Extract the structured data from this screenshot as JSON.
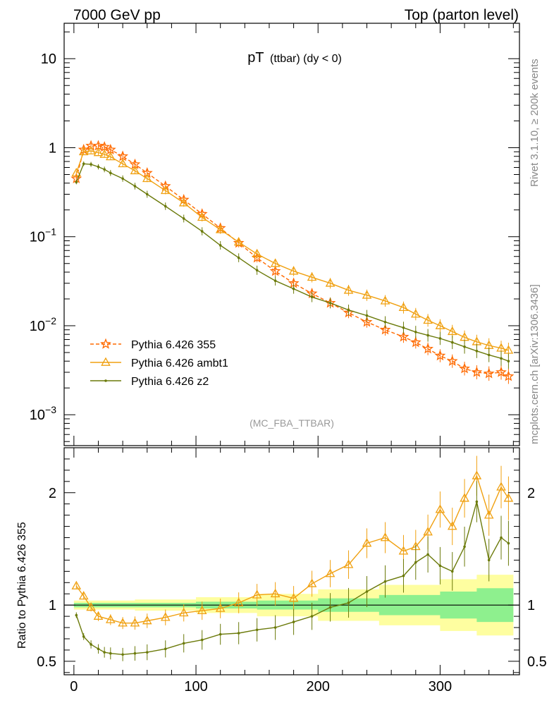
{
  "header": {
    "left": "7000 GeV pp",
    "right": "Top (parton level)"
  },
  "side_text": {
    "rivet": "Rivet 3.1.10, ≥ 200k events",
    "mcplots": "mcplots.cern.ch [arXiv:1306.3436]"
  },
  "chart_data": [
    {
      "type": "line",
      "panel": "main",
      "title_main": "pT",
      "title_sub": "(ttbar) (dy < 0)",
      "analysis_label": "(MC_FBA_TTBAR)",
      "yscale": "log",
      "ylim": [
        0.00045,
        25
      ],
      "xlim": [
        -8,
        365
      ],
      "y_tick_labels": [
        {
          "value": 10,
          "base": "10",
          "exp": ""
        },
        {
          "value": 1,
          "base": "1",
          "exp": ""
        },
        {
          "value": 0.1,
          "base": "10",
          "exp": "−1"
        },
        {
          "value": 0.01,
          "base": "10",
          "exp": "−2"
        },
        {
          "value": 0.001,
          "base": "10",
          "exp": "−3"
        }
      ],
      "legend": [
        {
          "name": "Pythia 6.426 355",
          "color": "#ff6a00",
          "marker": "star",
          "dashed": true
        },
        {
          "name": "Pythia 6.426 ambt1",
          "color": "#f0a010",
          "marker": "triangle",
          "dashed": false
        },
        {
          "name": "Pythia 6.426 z2",
          "color": "#6b7a0a",
          "marker": "dot",
          "dashed": false
        }
      ],
      "series": [
        {
          "name": "Pythia 6.426 355",
          "x": [
            2,
            8,
            14,
            20,
            25,
            30,
            40,
            50,
            60,
            75,
            90,
            105,
            120,
            135,
            150,
            165,
            180,
            195,
            210,
            225,
            240,
            255,
            270,
            280,
            290,
            300,
            310,
            320,
            330,
            340,
            350,
            356
          ],
          "y": [
            0.45,
            0.95,
            1.05,
            1.05,
            1.02,
            0.95,
            0.8,
            0.65,
            0.52,
            0.37,
            0.26,
            0.18,
            0.125,
            0.085,
            0.058,
            0.041,
            0.03,
            0.023,
            0.018,
            0.014,
            0.011,
            0.009,
            0.0075,
            0.0065,
            0.0055,
            0.0046,
            0.004,
            0.0033,
            0.003,
            0.0029,
            0.003,
            0.0027
          ]
        },
        {
          "name": "Pythia 6.426 ambt1",
          "x": [
            2,
            8,
            14,
            20,
            25,
            30,
            40,
            50,
            60,
            75,
            90,
            105,
            120,
            135,
            150,
            165,
            180,
            195,
            210,
            225,
            240,
            255,
            270,
            280,
            290,
            300,
            310,
            320,
            330,
            340,
            350,
            356
          ],
          "y": [
            0.52,
            0.9,
            0.92,
            0.88,
            0.84,
            0.79,
            0.66,
            0.55,
            0.45,
            0.33,
            0.24,
            0.165,
            0.12,
            0.087,
            0.064,
            0.05,
            0.041,
            0.035,
            0.03,
            0.025,
            0.022,
            0.019,
            0.016,
            0.0135,
            0.0115,
            0.01,
            0.0086,
            0.0074,
            0.0066,
            0.006,
            0.0056,
            0.0053
          ]
        },
        {
          "name": "Pythia 6.426 z2",
          "x": [
            2,
            8,
            14,
            20,
            25,
            30,
            40,
            50,
            60,
            75,
            90,
            105,
            120,
            135,
            150,
            165,
            180,
            195,
            210,
            225,
            240,
            255,
            270,
            280,
            290,
            300,
            310,
            320,
            330,
            340,
            350,
            356
          ],
          "y": [
            0.41,
            0.66,
            0.65,
            0.61,
            0.57,
            0.52,
            0.45,
            0.37,
            0.3,
            0.22,
            0.16,
            0.115,
            0.08,
            0.058,
            0.042,
            0.032,
            0.026,
            0.021,
            0.018,
            0.015,
            0.013,
            0.011,
            0.0095,
            0.0085,
            0.0078,
            0.0072,
            0.0065,
            0.0058,
            0.0052,
            0.0047,
            0.0043,
            0.004
          ]
        }
      ]
    },
    {
      "type": "line",
      "panel": "ratio",
      "ylabel": "Ratio to Pythia 6.426 355",
      "ylim": [
        0.38,
        2.4
      ],
      "xlim": [
        -8,
        365
      ],
      "x_ticks": [
        0,
        100,
        200,
        300
      ],
      "y_ticks": [
        0.5,
        1,
        2
      ],
      "y_tick_labels": [
        "0.5",
        "1",
        "2"
      ],
      "x_tick_labels": [
        "0",
        "100",
        "200",
        "300"
      ],
      "bands": {
        "x": [
          0,
          50,
          100,
          150,
          200,
          250,
          300,
          330,
          360
        ],
        "green_half_width": [
          0.02,
          0.02,
          0.03,
          0.04,
          0.06,
          0.09,
          0.12,
          0.15,
          0.17
        ],
        "yellow_half_width": [
          0.04,
          0.05,
          0.07,
          0.1,
          0.14,
          0.18,
          0.23,
          0.27,
          0.3
        ]
      },
      "series": [
        {
          "name": "Pythia 6.426 ambt1",
          "x": [
            2,
            8,
            14,
            20,
            30,
            40,
            50,
            60,
            75,
            90,
            105,
            120,
            135,
            150,
            165,
            180,
            195,
            210,
            225,
            240,
            255,
            270,
            280,
            290,
            300,
            310,
            320,
            330,
            340,
            350,
            356
          ],
          "y": [
            1.17,
            1.08,
            0.98,
            0.9,
            0.87,
            0.84,
            0.84,
            0.86,
            0.89,
            0.93,
            0.95,
            0.97,
            1.02,
            1.09,
            1.1,
            1.06,
            1.19,
            1.28,
            1.36,
            1.55,
            1.6,
            1.48,
            1.52,
            1.65,
            1.85,
            1.7,
            1.95,
            2.15,
            1.8,
            2.05,
            1.95
          ]
        },
        {
          "name": "Pythia 6.426 z2",
          "x": [
            2,
            8,
            14,
            20,
            25,
            30,
            40,
            50,
            60,
            75,
            90,
            105,
            120,
            135,
            150,
            165,
            180,
            195,
            210,
            225,
            240,
            255,
            270,
            280,
            290,
            300,
            310,
            320,
            330,
            340,
            350,
            356
          ],
          "y": [
            0.91,
            0.72,
            0.65,
            0.61,
            0.58,
            0.57,
            0.56,
            0.57,
            0.58,
            0.61,
            0.66,
            0.69,
            0.74,
            0.75,
            0.78,
            0.8,
            0.85,
            0.9,
            0.98,
            1.02,
            1.12,
            1.21,
            1.26,
            1.38,
            1.45,
            1.35,
            1.3,
            1.52,
            1.92,
            1.4,
            1.6,
            1.55
          ]
        }
      ],
      "reference_line": 1
    }
  ]
}
